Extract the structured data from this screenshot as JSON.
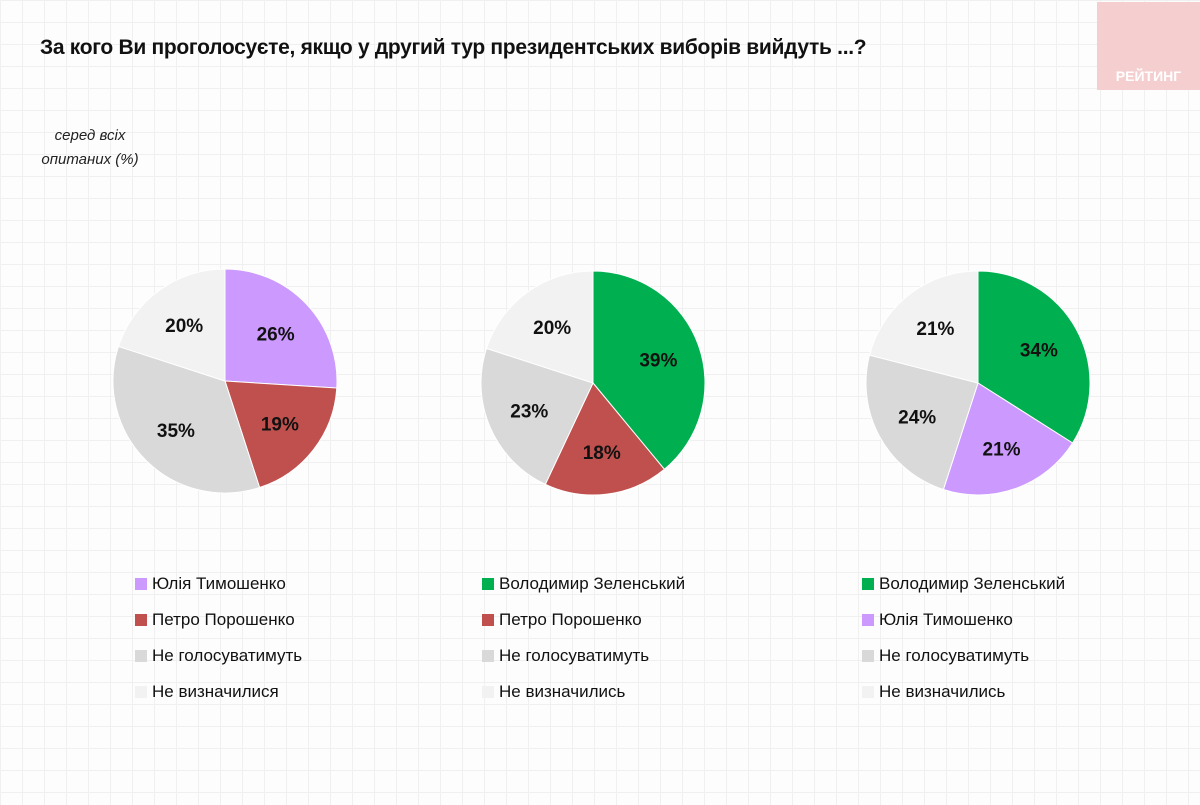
{
  "title": "За кого Ви проголосуєте, якщо у другий тур президентських виборів вийдуть ...?",
  "logo": "РЕЙТИНГ",
  "subtitle": [
    "серед всіх",
    "опитаних (%)"
  ],
  "colors": {
    "Юлія Тимошенко": "#cc99ff",
    "Петро Порошенко": "#c0504d",
    "Володимир Зеленський": "#00b050",
    "Не голосуватимуть": "#d9d9d9",
    "Не визначилися": "#f2f2f2",
    "Не визначились": "#f2f2f2"
  },
  "chart_data": [
    {
      "type": "pie",
      "categories": [
        "Юлія Тимошенко",
        "Петро Порошенко",
        "Не голосуватимуть",
        "Не визначилися"
      ],
      "values": [
        26,
        19,
        35,
        20
      ],
      "legend": "bottom"
    },
    {
      "type": "pie",
      "categories": [
        "Володимир Зеленський",
        "Петро Порошенко",
        "Не голосуватимуть",
        "Не визначились"
      ],
      "values": [
        39,
        18,
        23,
        20
      ],
      "legend": "bottom"
    },
    {
      "type": "pie",
      "categories": [
        "Володимир Зеленський",
        "Юлія Тимошенко",
        "Не голосуватимуть",
        "Не визначились"
      ],
      "values": [
        34,
        21,
        24,
        21
      ],
      "legend": "bottom"
    }
  ]
}
